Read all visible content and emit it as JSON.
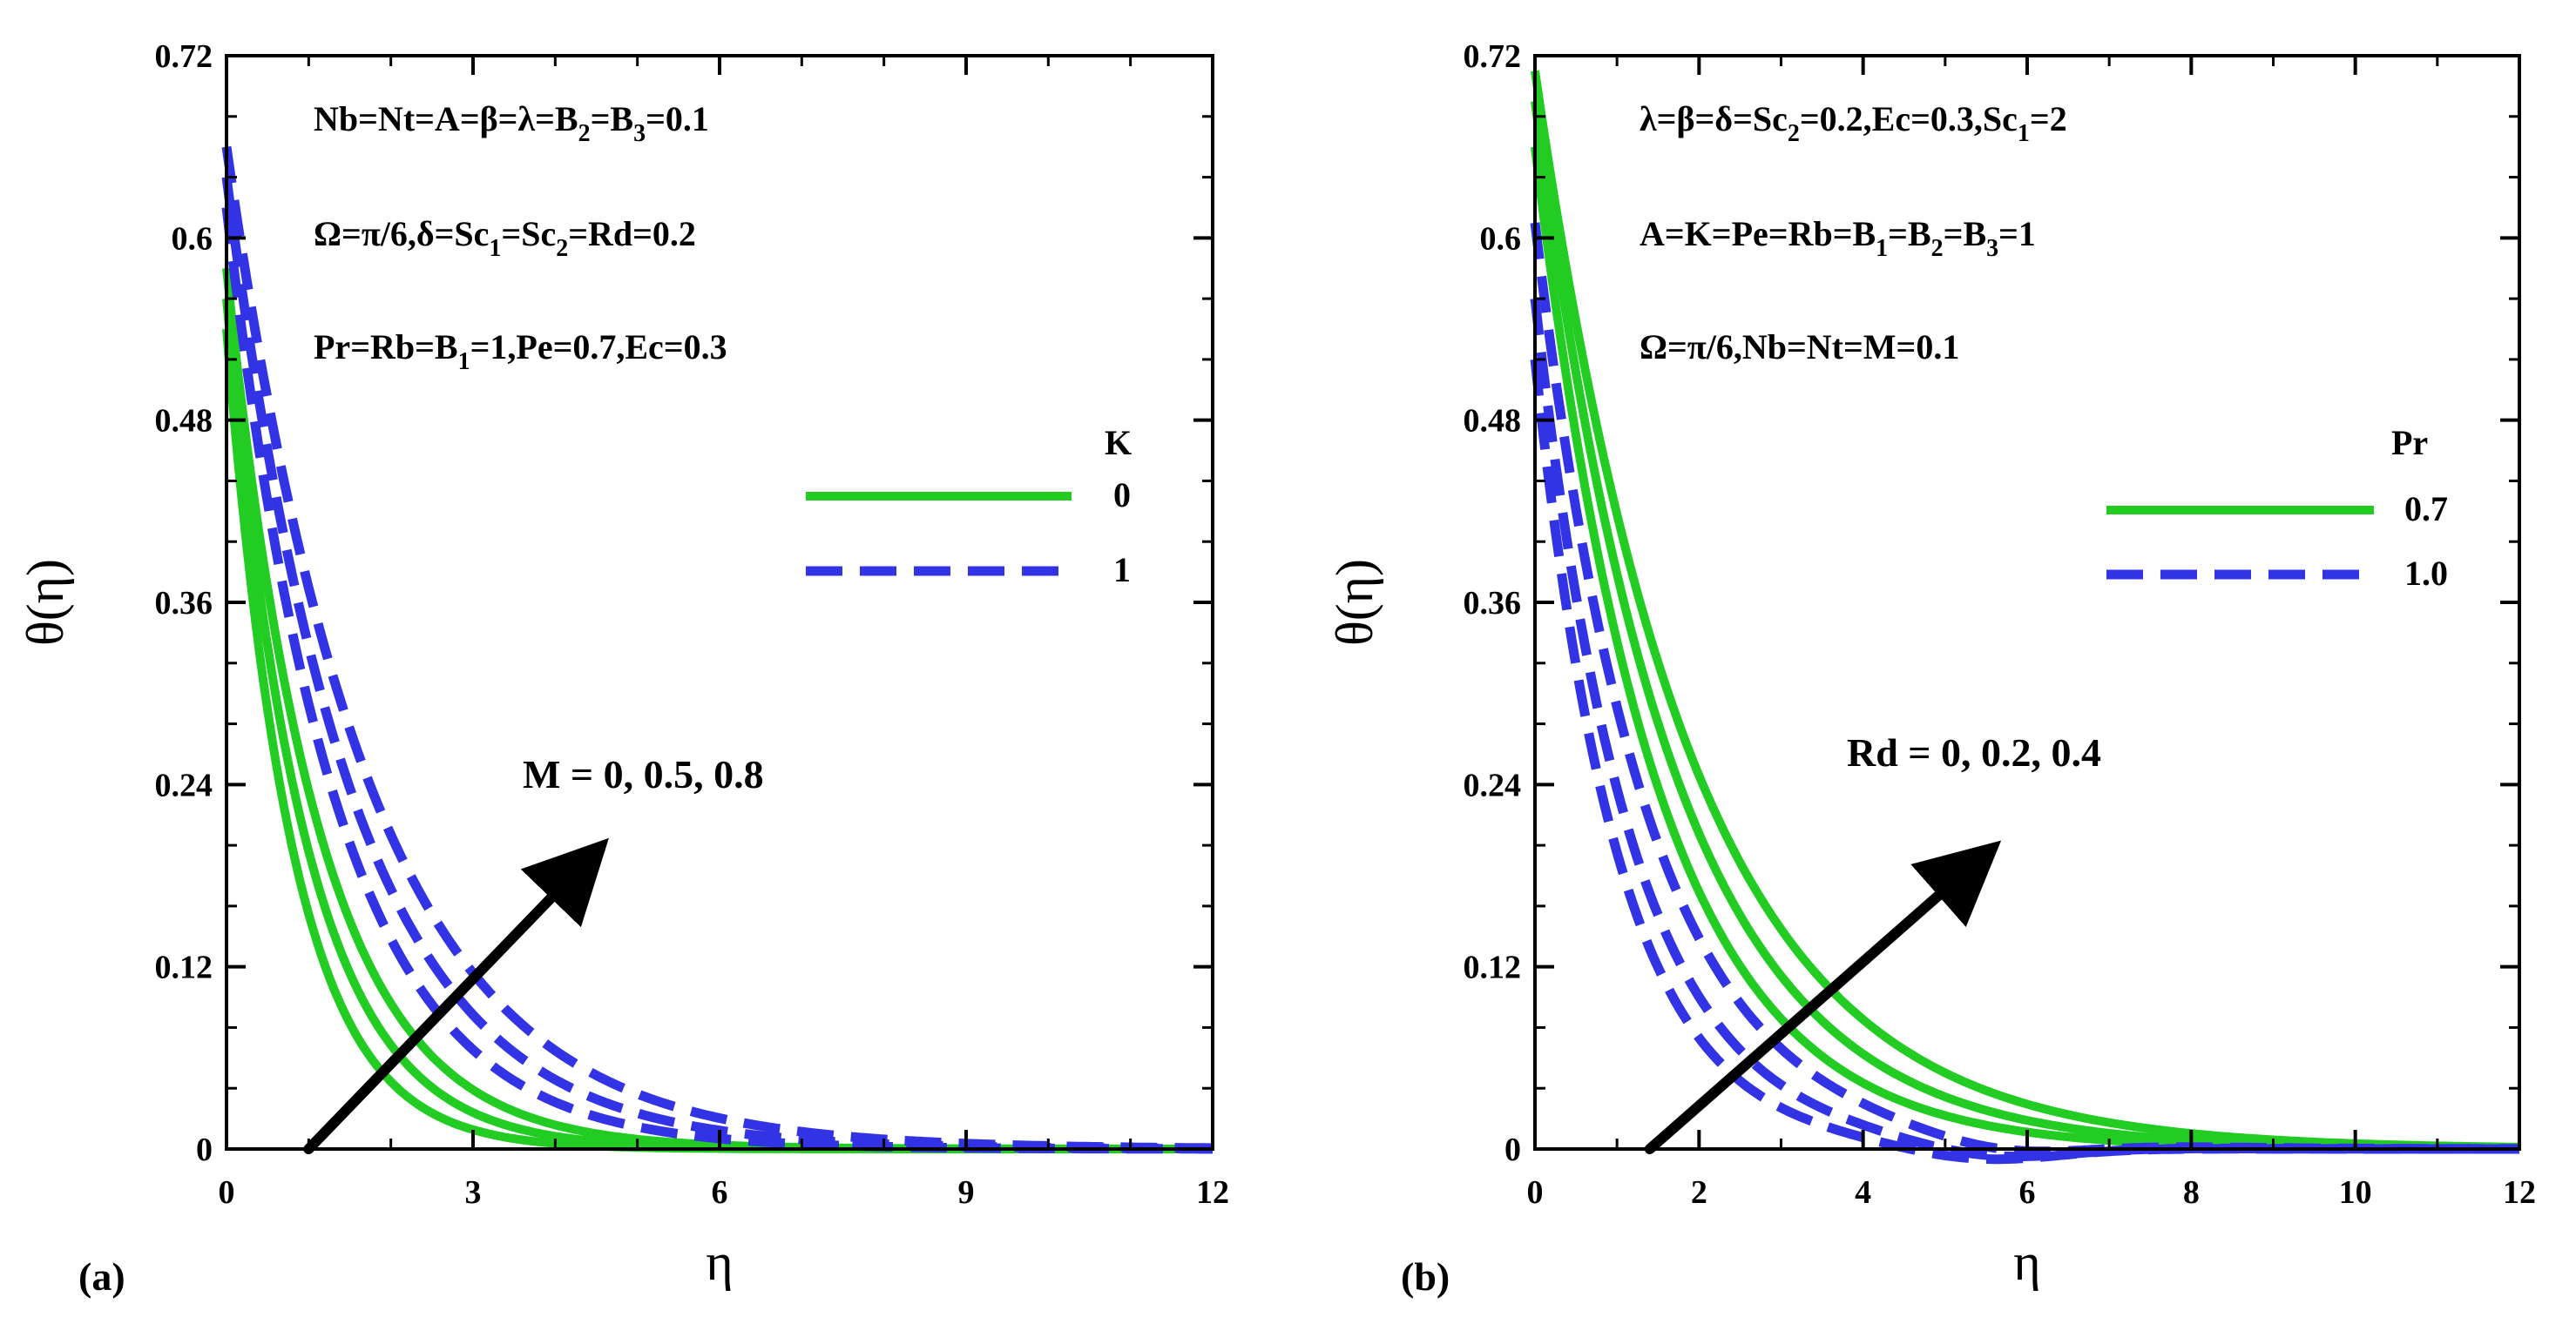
{
  "colors": {
    "green": "#22cc22",
    "blue": "#3333e6",
    "arrow": "#000000"
  },
  "chart_data": [
    {
      "type": "line",
      "panel_label": "(a)",
      "xlabel": "η",
      "ylabel": "θ(η)",
      "xlim": [
        0,
        12
      ],
      "ylim": [
        0,
        0.72
      ],
      "xticks": [
        0,
        3,
        6,
        9,
        12
      ],
      "yticks": [
        0,
        0.12,
        0.24,
        0.36,
        0.48,
        0.6,
        0.72
      ],
      "xtick_labels": [
        "0",
        "3",
        "6",
        "9",
        "12"
      ],
      "ytick_labels": [
        "0",
        "0.12",
        "0.24",
        "0.36",
        "0.48",
        "0.6",
        "0.72"
      ],
      "annotations": [
        [
          {
            "t": "Nb=Nt=A=β=λ=B"
          },
          {
            "t": "2",
            "sub": true
          },
          {
            "t": "=B"
          },
          {
            "t": "3",
            "sub": true
          },
          {
            "t": "=0.1"
          }
        ],
        [
          {
            "t": "Ω=π/6,δ=Sc"
          },
          {
            "t": "1",
            "sub": true
          },
          {
            "t": "=Sc"
          },
          {
            "t": "2",
            "sub": true
          },
          {
            "t": "=Rd=0.2"
          }
        ],
        [
          {
            "t": "Pr=Rb=B"
          },
          {
            "t": "1",
            "sub": true
          },
          {
            "t": "=1,Pe=0.7,Ec=0.3"
          }
        ]
      ],
      "legend": {
        "title": "K",
        "entries": [
          {
            "label": "0",
            "style": "solid",
            "color": "green"
          },
          {
            "label": "1",
            "style": "dashed",
            "color": "blue"
          }
        ]
      },
      "arrow_label": "M = 0, 0.5, 0.8",
      "arrow": {
        "from": [
          1.0,
          0.0
        ],
        "to": [
          4.3,
          0.185
        ]
      },
      "series": [
        {
          "name": "K=0, M=0",
          "style": "solid",
          "color": "green",
          "y0": 0.54,
          "k": 1.25
        },
        {
          "name": "K=0, M=0.5",
          "style": "solid",
          "color": "green",
          "y0": 0.56,
          "k": 1.05
        },
        {
          "name": "K=0, M=0.8",
          "style": "solid",
          "color": "green",
          "y0": 0.58,
          "k": 0.9
        },
        {
          "name": "K=1, M=0",
          "style": "dashed",
          "color": "blue",
          "y0": 0.62,
          "k": 0.75
        },
        {
          "name": "K=1, M=0.5",
          "style": "dashed",
          "color": "blue",
          "y0": 0.64,
          "k": 0.66
        },
        {
          "name": "K=1, M=0.8",
          "style": "dashed",
          "color": "blue",
          "y0": 0.66,
          "k": 0.58
        }
      ]
    },
    {
      "type": "line",
      "panel_label": "(b)",
      "xlabel": "η",
      "ylabel": "θ(η)",
      "xlim": [
        0,
        12
      ],
      "ylim": [
        0,
        0.72
      ],
      "xticks": [
        0,
        2,
        4,
        6,
        8,
        10,
        12
      ],
      "yticks": [
        0,
        0.12,
        0.24,
        0.36,
        0.48,
        0.6,
        0.72
      ],
      "xtick_labels": [
        "0",
        "2",
        "4",
        "6",
        "8",
        "10",
        "12"
      ],
      "ytick_labels": [
        "0",
        "0.12",
        "0.24",
        "0.36",
        "0.48",
        "0.6",
        "0.72"
      ],
      "annotations": [
        [
          {
            "t": "λ=β=δ=Sc"
          },
          {
            "t": "2",
            "sub": true
          },
          {
            "t": "=0.2,Ec=0.3,Sc"
          },
          {
            "t": "1",
            "sub": true
          },
          {
            "t": "=2"
          }
        ],
        [
          {
            "t": "A=K=Pe=Rb=B"
          },
          {
            "t": "1",
            "sub": true
          },
          {
            "t": "=B"
          },
          {
            "t": "2",
            "sub": true
          },
          {
            "t": "=B"
          },
          {
            "t": "3",
            "sub": true
          },
          {
            "t": "=1"
          }
        ],
        [
          {
            "t": "Ω=π/6,Nb=Nt=M=0.1"
          }
        ]
      ],
      "legend": {
        "title": "Pr",
        "entries": [
          {
            "label": "0.7",
            "style": "solid",
            "color": "green"
          },
          {
            "label": "1.0",
            "style": "dashed",
            "color": "blue"
          }
        ]
      },
      "arrow_label": "Rd = 0, 0.2, 0.4",
      "arrow": {
        "from": [
          1.4,
          0.0
        ],
        "to": [
          5.3,
          0.185
        ]
      },
      "series": [
        {
          "name": "Pr=0.7, Rd=0",
          "style": "solid",
          "color": "green",
          "y0": 0.66,
          "k": 0.68
        },
        {
          "name": "Pr=0.7, Rd=0.2",
          "style": "solid",
          "color": "green",
          "y0": 0.69,
          "k": 0.6
        },
        {
          "name": "Pr=0.7, Rd=0.4",
          "style": "solid",
          "color": "green",
          "y0": 0.71,
          "k": 0.53
        },
        {
          "name": "Pr=1.0, Rd=0",
          "style": "dashed",
          "color": "blue",
          "y0": 0.52,
          "k": 0.98,
          "undershoot": true
        },
        {
          "name": "Pr=1.0, Rd=0.2",
          "style": "dashed",
          "color": "blue",
          "y0": 0.56,
          "k": 0.86,
          "undershoot": true
        },
        {
          "name": "Pr=1.0, Rd=0.4",
          "style": "dashed",
          "color": "blue",
          "y0": 0.61,
          "k": 0.74,
          "undershoot": true
        }
      ]
    }
  ]
}
